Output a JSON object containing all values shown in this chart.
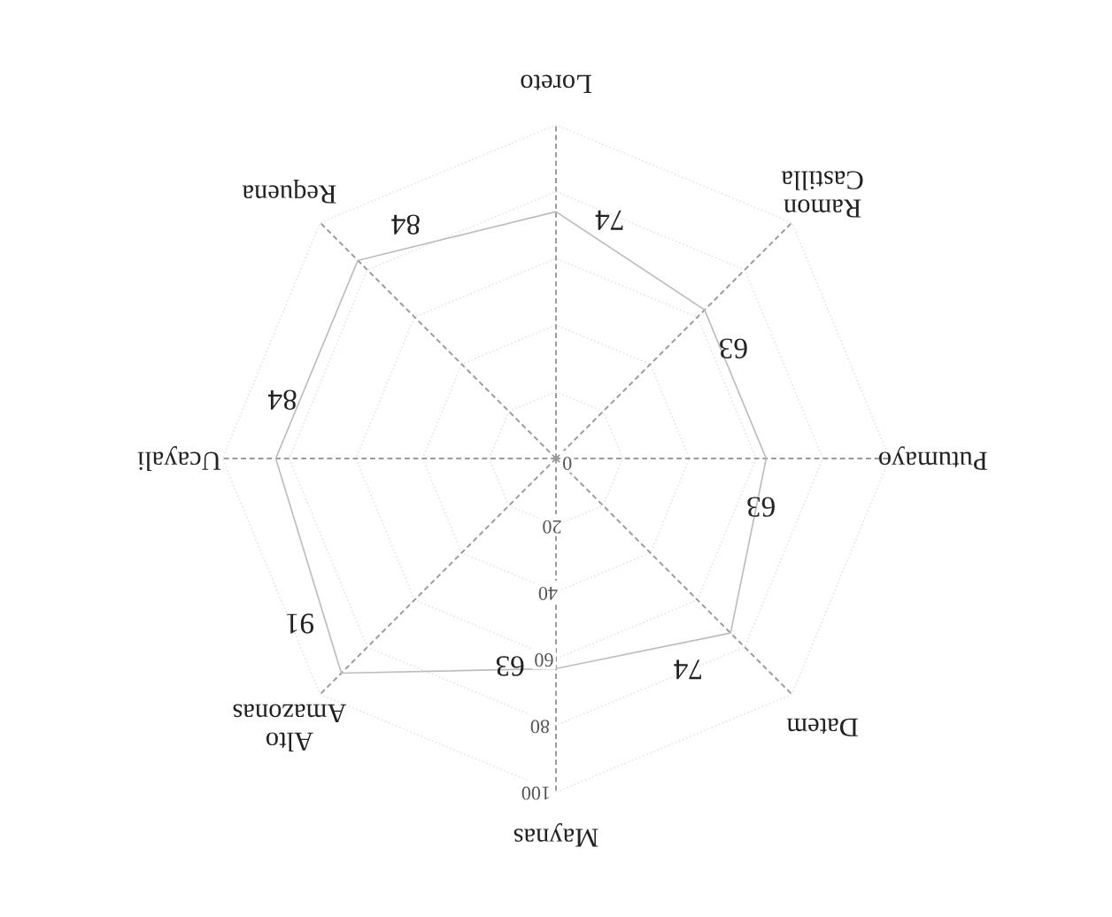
{
  "chart_data": {
    "type": "radar",
    "categories": [
      "Maynas",
      "Alto Amazonas",
      "Ucayali",
      "Requena",
      "Loreto",
      "Ramon Castilla",
      "Putumayo",
      "Datem"
    ],
    "series": [
      {
        "color": "#bdbdbd",
        "values": [
          63,
          91,
          84,
          84,
          74,
          63,
          63,
          74
        ]
      }
    ],
    "ylim": [
      0,
      100
    ],
    "yticks": [
      0,
      20,
      40,
      60,
      80,
      100
    ],
    "data_labels": true,
    "grid": true,
    "marker": "none",
    "line_style": "solid"
  }
}
